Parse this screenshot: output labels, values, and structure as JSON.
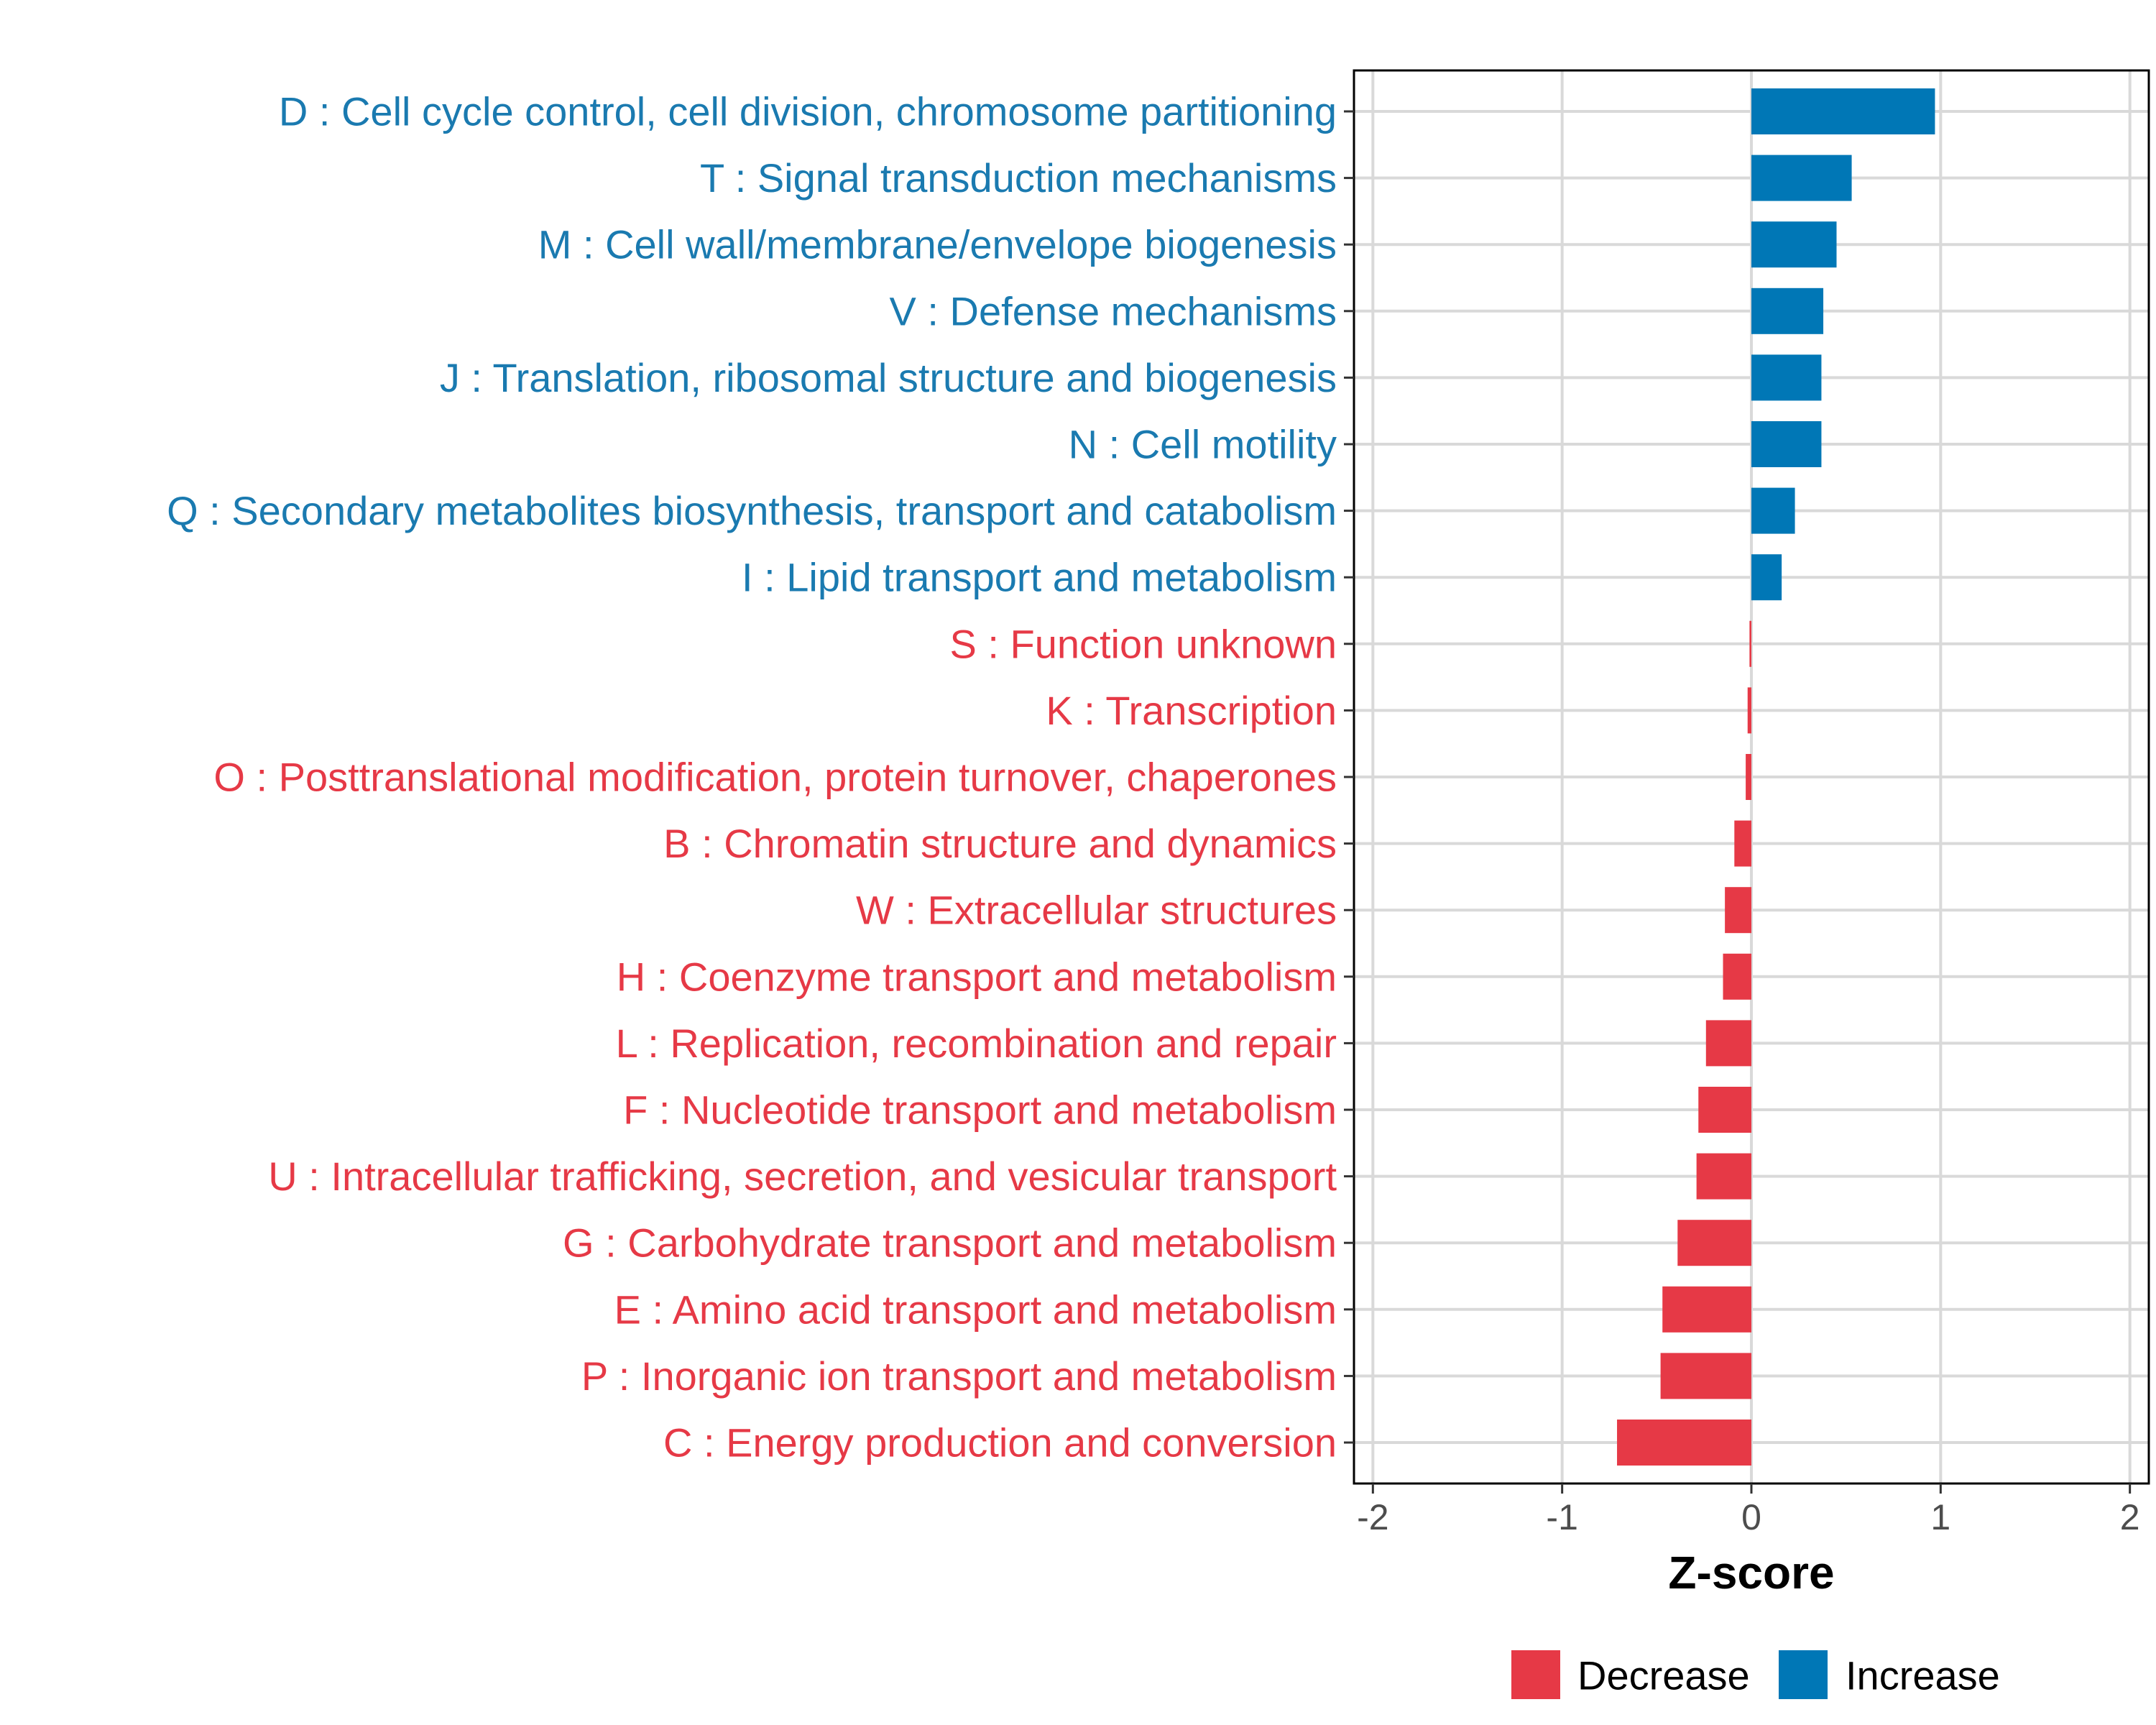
{
  "chart_data": {
    "type": "bar",
    "orientation": "horizontal",
    "title": "",
    "xlabel": "Z-score",
    "ylabel": "",
    "xlim": [
      -2.1,
      2.1
    ],
    "xticks": [
      -2,
      -1,
      0,
      1,
      2
    ],
    "xtick_labels": [
      "-2",
      "-1",
      "0",
      "1",
      "2"
    ],
    "grid": true,
    "categories": [
      "D : Cell cycle control, cell division, chromosome partitioning",
      "T : Signal transduction mechanisms",
      "M : Cell wall/membrane/envelope biogenesis",
      "V : Defense mechanisms",
      "J : Translation, ribosomal structure and biogenesis",
      "N : Cell motility",
      "Q : Secondary metabolites biosynthesis, transport and catabolism",
      "I : Lipid transport and metabolism",
      "S : Function unknown",
      "K : Transcription",
      "O : Posttranslational modification, protein turnover, chaperones",
      "B : Chromatin structure and dynamics",
      "W : Extracellular structures",
      "H : Coenzyme transport and metabolism",
      "L : Replication, recombination and repair",
      "F : Nucleotide transport and metabolism",
      "U : Intracellular trafficking, secretion, and vesicular transport",
      "G : Carbohydrate transport and metabolism",
      "E : Amino acid transport and metabolism",
      "P : Inorganic ion transport and metabolism",
      "C : Energy production and conversion"
    ],
    "values": [
      0.97,
      0.53,
      0.45,
      0.38,
      0.37,
      0.37,
      0.23,
      0.16,
      -0.01,
      -0.02,
      -0.03,
      -0.09,
      -0.14,
      -0.15,
      -0.24,
      -0.28,
      -0.29,
      -0.39,
      -0.47,
      -0.48,
      -0.71
    ],
    "groups": [
      "Increase",
      "Increase",
      "Increase",
      "Increase",
      "Increase",
      "Increase",
      "Increase",
      "Increase",
      "Decrease",
      "Decrease",
      "Decrease",
      "Decrease",
      "Decrease",
      "Decrease",
      "Decrease",
      "Decrease",
      "Decrease",
      "Decrease",
      "Decrease",
      "Decrease",
      "Decrease"
    ],
    "legend": {
      "position": "bottom",
      "entries": [
        {
          "label": "Decrease",
          "color": "#E63946"
        },
        {
          "label": "Increase",
          "color": "#0077B6"
        }
      ]
    },
    "colors": {
      "Decrease": "#E63946",
      "Increase": "#0077B6",
      "label_decrease": "#E63946",
      "label_increase": "#1A7AB0",
      "grid": "#d9d9d9",
      "panel_border": "#000000",
      "tick_text": "#4d4d4d"
    }
  }
}
